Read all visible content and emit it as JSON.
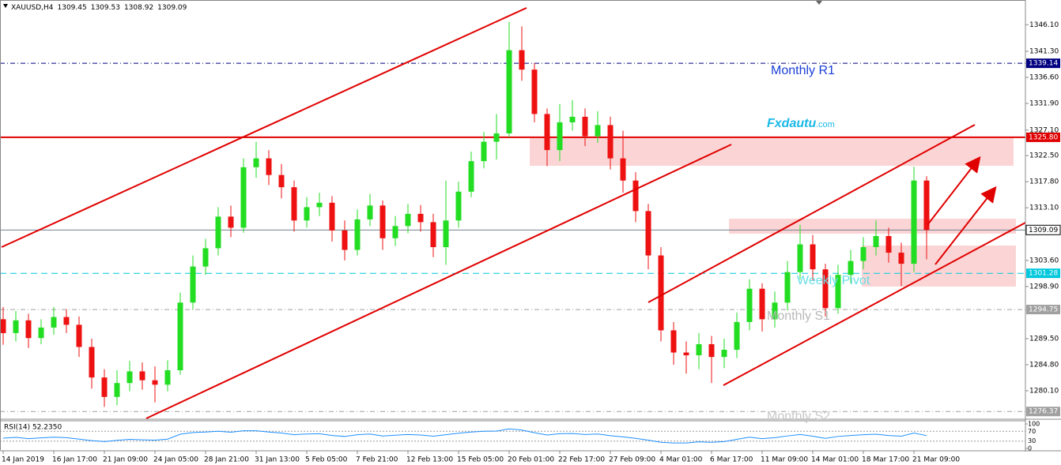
{
  "chart_data": {
    "type": "candlestick",
    "title": "XAUUSD,H4",
    "header_values": [
      1309.45,
      1309.53,
      1308.92,
      1309.09
    ],
    "up_color": "#22dd22",
    "down_color": "#ee1111",
    "ylim": [
      1275.12,
      1350.55
    ],
    "yticks": [
      {
        "value": 1346.1,
        "label": "1346.10"
      },
      {
        "value": 1341.3,
        "label": "1341.30"
      },
      {
        "value": 1336.6,
        "label": "1336.60"
      },
      {
        "value": 1331.9,
        "label": "1331.90"
      },
      {
        "value": 1327.1,
        "label": "1327.10"
      },
      {
        "value": 1322.5,
        "label": "1322.50"
      },
      {
        "value": 1317.8,
        "label": "1317.80"
      },
      {
        "value": 1313.1,
        "label": "1313.10"
      },
      {
        "value": 1303.6,
        "label": "1303.60"
      },
      {
        "value": 1298.9,
        "label": "1298.90"
      },
      {
        "value": 1289.5,
        "label": "1289.50"
      },
      {
        "value": 1284.8,
        "label": "1284.80"
      },
      {
        "value": 1280.1,
        "label": "1280.10"
      }
    ],
    "categories": [
      "14 Jan 2019",
      null,
      null,
      null,
      "16 Jan 17:00",
      null,
      null,
      null,
      "21 Jan 09:00",
      null,
      null,
      null,
      "24 Jan 05:00",
      null,
      null,
      null,
      "28 Jan 21:00",
      null,
      null,
      null,
      "31 Jan 13:00",
      null,
      null,
      null,
      "5 Feb 05:00",
      null,
      null,
      null,
      "7 Feb 21:00",
      null,
      null,
      null,
      "12 Feb 13:00",
      null,
      null,
      null,
      "15 Feb 05:00",
      null,
      null,
      null,
      "20 Feb 01:00",
      null,
      null,
      null,
      "22 Feb 17:00",
      null,
      null,
      null,
      "27 Feb 09:00",
      null,
      null,
      null,
      "4 Mar 01:00",
      null,
      null,
      null,
      "6 Mar 17:00",
      null,
      null,
      null,
      "11 Mar 09:00",
      null,
      null,
      null,
      "14 Mar 01:00",
      null,
      null,
      null,
      "18 Mar 17:00",
      null,
      null,
      null,
      "21 Mar 09:00",
      null
    ],
    "open": [
      1293.0,
      1290.5,
      1292.8,
      1289.6,
      1291.5,
      1293.4,
      1292.0,
      1288.0,
      1282.5,
      1279.0,
      1281.5,
      1283.6,
      1282.0,
      1281.2,
      1283.8,
      1296.0,
      1302.5,
      1305.8,
      1311.5,
      1309.5,
      1320.4,
      1322.0,
      1319.0,
      1316.8,
      1310.8,
      1313.2,
      1314.0,
      1309.0,
      1305.5,
      1311.0,
      1313.5,
      1307.6,
      1309.8,
      1312.0,
      1310.5,
      1306.0,
      1310.8,
      1316.0,
      1321.5,
      1325.0,
      1326.5,
      1341.5,
      1338.0,
      1330.0,
      1323.5,
      1328.5,
      1329.5,
      1326.0,
      1328.0,
      1322.0,
      1318.0,
      1312.5,
      1304.5,
      1291.0,
      1287.0,
      1286.5,
      1288.5,
      1286.2,
      1287.5,
      1292.5,
      1298.5,
      1293.0,
      1296.0,
      1301.5,
      1306.5,
      1302.0,
      1295.0,
      1301.0,
      1303.5,
      1306.0,
      1308.0,
      1305.0,
      1303.0,
      1318.0
    ],
    "high": [
      1295.2,
      1294.5,
      1294.0,
      1293.0,
      1295.2,
      1294.8,
      1293.5,
      1289.5,
      1284.0,
      1283.8,
      1285.5,
      1285.2,
      1284.5,
      1285.6,
      1297.8,
      1304.5,
      1307.5,
      1313.2,
      1313.5,
      1322.0,
      1325.0,
      1323.5,
      1321.0,
      1318.0,
      1315.0,
      1315.8,
      1315.2,
      1310.8,
      1312.8,
      1315.6,
      1314.4,
      1311.6,
      1313.8,
      1313.6,
      1312.0,
      1318.0,
      1317.8,
      1323.2,
      1326.8,
      1330.0,
      1346.6,
      1345.8,
      1339.2,
      1331.0,
      1331.8,
      1332.5,
      1331.0,
      1330.5,
      1329.5,
      1327.0,
      1319.5,
      1313.8,
      1306.0,
      1292.5,
      1289.0,
      1290.5,
      1290.0,
      1289.5,
      1294.2,
      1300.2,
      1299.5,
      1298.0,
      1303.5,
      1310.0,
      1308.2,
      1303.0,
      1302.8,
      1305.5,
      1307.8,
      1310.8,
      1309.5,
      1306.8,
      1320.5,
      1318.8
    ],
    "low": [
      1288.4,
      1289.0,
      1287.8,
      1288.5,
      1290.2,
      1290.5,
      1286.2,
      1280.5,
      1277.2,
      1277.5,
      1280.0,
      1280.3,
      1278.0,
      1280.0,
      1283.0,
      1294.8,
      1301.0,
      1304.5,
      1307.8,
      1308.6,
      1318.5,
      1317.2,
      1314.8,
      1308.8,
      1309.5,
      1311.6,
      1307.0,
      1303.6,
      1304.5,
      1309.8,
      1305.5,
      1306.2,
      1308.5,
      1308.8,
      1304.2,
      1302.8,
      1309.5,
      1315.0,
      1320.2,
      1321.8,
      1325.8,
      1336.0,
      1328.5,
      1320.6,
      1321.5,
      1327.0,
      1324.2,
      1324.8,
      1320.0,
      1315.8,
      1310.5,
      1302.0,
      1289.0,
      1284.8,
      1283.2,
      1284.0,
      1281.5,
      1284.2,
      1286.0,
      1291.0,
      1290.8,
      1291.5,
      1294.6,
      1300.2,
      1300.0,
      1293.5,
      1294.0,
      1299.5,
      1302.0,
      1304.5,
      1303.2,
      1299.0,
      1301.5,
      1303.8
    ],
    "close": [
      1290.5,
      1292.8,
      1289.6,
      1291.5,
      1293.4,
      1292.0,
      1288.0,
      1282.5,
      1279.0,
      1281.5,
      1283.6,
      1282.0,
      1281.2,
      1283.8,
      1296.0,
      1302.5,
      1305.8,
      1311.5,
      1309.5,
      1320.4,
      1322.0,
      1319.0,
      1316.8,
      1310.8,
      1313.2,
      1314.0,
      1309.0,
      1305.5,
      1311.0,
      1313.5,
      1307.6,
      1309.8,
      1312.0,
      1310.5,
      1306.0,
      1310.8,
      1316.0,
      1321.5,
      1325.0,
      1326.5,
      1341.5,
      1338.0,
      1330.0,
      1323.5,
      1328.5,
      1329.5,
      1326.0,
      1328.0,
      1322.0,
      1318.0,
      1312.5,
      1304.5,
      1291.0,
      1287.0,
      1286.5,
      1288.5,
      1286.2,
      1287.5,
      1292.5,
      1298.5,
      1293.0,
      1296.0,
      1301.5,
      1306.5,
      1302.0,
      1295.0,
      1301.0,
      1303.5,
      1306.0,
      1308.0,
      1305.0,
      1303.0,
      1318.0,
      1309.09
    ],
    "levels": [
      {
        "value": 1339.14,
        "color": "#000080",
        "style": "dashdot"
      },
      {
        "value": 1325.8,
        "label": "1325.80",
        "color": "#e00000",
        "style": "solid"
      },
      {
        "value": 1309.09,
        "color": "#708090",
        "style": "current"
      },
      {
        "value": 1301.28,
        "color": "#00c8dc",
        "style": "dashed"
      },
      {
        "value": 1294.75,
        "color": "#a0a0a0",
        "style": "dashdot"
      },
      {
        "value": 1276.37,
        "color": "#a0a0a0",
        "style": "dashdot"
      }
    ],
    "annotations": [
      {
        "text": "Monthly R1",
        "color": "#1a3fd6"
      },
      {
        "text": "Fxdautu",
        "color": "#1ab8e8"
      },
      {
        "text": ".com",
        "color": "#1ab8e8"
      },
      {
        "text": "Weekly Pivot",
        "color": "#66dde8"
      },
      {
        "text": "Monthly S1",
        "color": "#b8b8b8"
      },
      {
        "text": "Monthly S2",
        "color": "#c8c8c8"
      }
    ],
    "rsi": {
      "label": "RSI(14) 52.2350",
      "color": "#1e90ff",
      "ylim": [
        0,
        100
      ],
      "yticks": [
        100,
        70,
        30,
        0
      ],
      "values": [
        42,
        45,
        40,
        43,
        46,
        44,
        38,
        32,
        28,
        33,
        37,
        35,
        34,
        38,
        58,
        65,
        67,
        70,
        66,
        72,
        72,
        67,
        63,
        56,
        59,
        60,
        53,
        49,
        56,
        59,
        51,
        54,
        57,
        55,
        50,
        56,
        62,
        67,
        70,
        71,
        80,
        75,
        64,
        55,
        60,
        61,
        57,
        59,
        52,
        47,
        41,
        34,
        25,
        22,
        22,
        27,
        25,
        28,
        37,
        46,
        40,
        44,
        51,
        57,
        50,
        41,
        49,
        53,
        56,
        58,
        53,
        50,
        63,
        52.235
      ]
    }
  }
}
